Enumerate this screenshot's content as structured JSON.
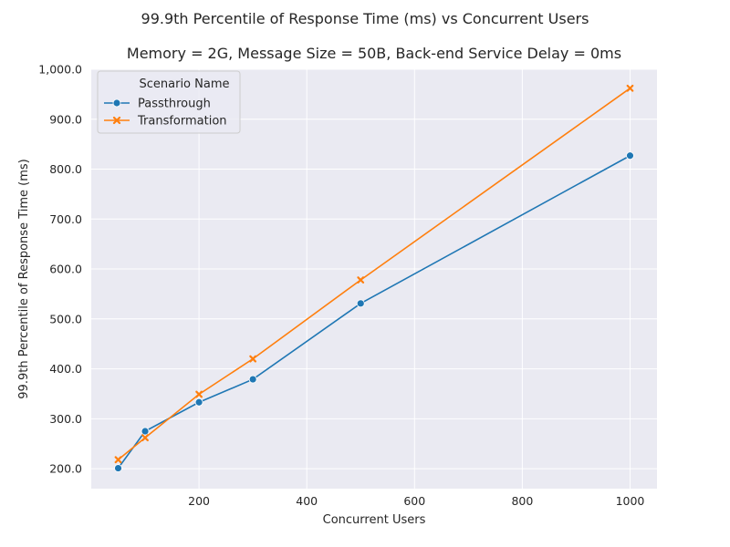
{
  "chart_data": {
    "type": "line",
    "suptitle": "99.9th Percentile of Response Time (ms) vs Concurrent Users",
    "title": "Memory = 2G, Message Size = 50B, Back-end Service Delay = 0ms",
    "xlabel": "Concurrent Users",
    "ylabel": "99.9th Percentile of Response Time (ms)",
    "xlim": [
      0,
      1050
    ],
    "ylim": [
      160,
      1000
    ],
    "xticks": [
      200,
      400,
      600,
      800,
      1000
    ],
    "xtick_labels": [
      "200",
      "400",
      "600",
      "800",
      "1000"
    ],
    "yticks": [
      200,
      300,
      400,
      500,
      600,
      700,
      800,
      900,
      1000
    ],
    "ytick_labels": [
      "200.0",
      "300.0",
      "400.0",
      "500.0",
      "600.0",
      "700.0",
      "800.0",
      "900.0",
      "1,000.0"
    ],
    "grid": true,
    "legend": {
      "title": "Scenario Name",
      "position": "top-left"
    },
    "series": [
      {
        "name": "Passthrough",
        "color": "#1f77b4",
        "marker": "circle",
        "x": [
          50,
          100,
          200,
          300,
          500,
          1000
        ],
        "values": [
          201,
          275,
          333,
          379,
          531,
          827
        ]
      },
      {
        "name": "Transformation",
        "color": "#ff7f0e",
        "marker": "x",
        "x": [
          50,
          100,
          200,
          300,
          500,
          1000
        ],
        "values": [
          218,
          262,
          349,
          420,
          578,
          962
        ]
      }
    ]
  }
}
